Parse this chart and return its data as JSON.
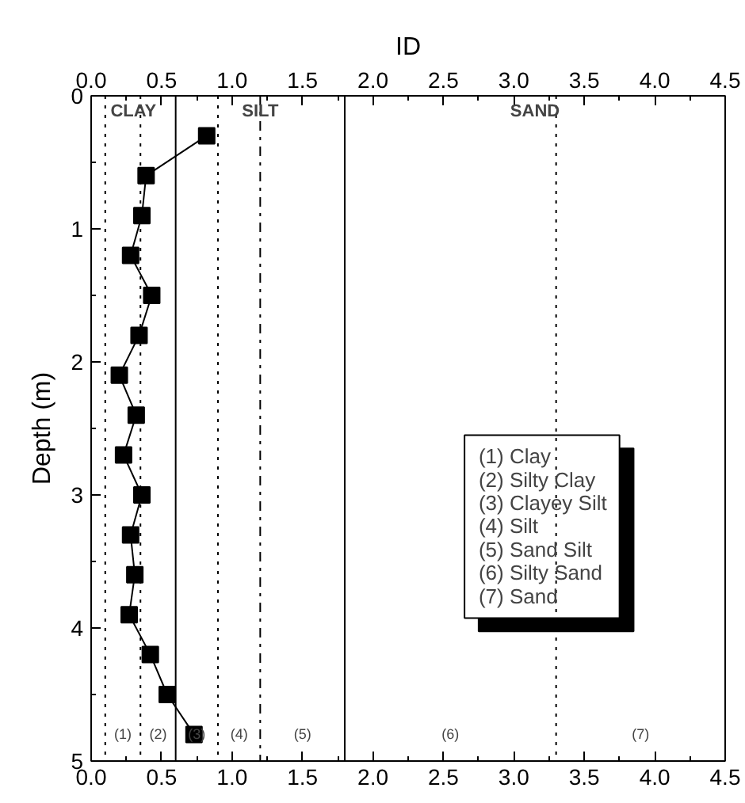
{
  "chart_data": {
    "type": "line",
    "xlabel": "ID",
    "ylabel": "Depth (m)",
    "series": [
      {
        "color": "#000000",
        "x": [
          0.82,
          0.39,
          0.36,
          0.28,
          0.43,
          0.34,
          0.2,
          0.32,
          0.23,
          0.36,
          0.28,
          0.31,
          0.27,
          0.42,
          0.54,
          0.73
        ],
        "values": [
          0.3,
          0.6,
          0.9,
          1.2,
          1.5,
          1.8,
          2.1,
          2.4,
          2.7,
          3.0,
          3.3,
          3.6,
          3.9,
          4.2,
          4.5,
          4.8
        ]
      }
    ],
    "marker": "square",
    "line_style": "solid",
    "xlim": [
      0,
      4.5
    ],
    "xticks": [
      {
        "value": 0,
        "label": "0.0"
      },
      0.5,
      {
        "value": 1,
        "label": "1.0"
      },
      1.5,
      {
        "value": 2,
        "label": "2.0"
      },
      2.5,
      {
        "value": 3,
        "label": "3.0"
      },
      3.5,
      {
        "value": 4,
        "label": "4.0"
      },
      4.5
    ],
    "x2lim": [
      0,
      4.5
    ],
    "x2ticks": [
      {
        "value": 0,
        "label": "0.0"
      },
      0.5,
      {
        "value": 1,
        "label": "1.0"
      },
      1.5,
      {
        "value": 2,
        "label": "2.0"
      },
      2.5,
      {
        "value": 3,
        "label": "3.0"
      },
      3.5,
      {
        "value": 4,
        "label": "4.0"
      },
      4.5
    ],
    "ylim": [
      5,
      0
    ],
    "yticks": [
      0,
      1,
      2,
      3,
      4,
      5
    ],
    "ref_lines": [
      {
        "axis": "x",
        "value": 0.1,
        "line_style": "dotted"
      },
      {
        "axis": "x",
        "value": 0.35,
        "line_style": "dotted"
      },
      {
        "axis": "x",
        "value": 0.6,
        "line_style": "solid"
      },
      {
        "axis": "x",
        "value": 0.9,
        "line_style": "dotted"
      },
      {
        "axis": "x",
        "value": 1.2,
        "line_style": "dashdot"
      },
      {
        "axis": "x",
        "value": 1.8,
        "line_style": "solid"
      },
      {
        "axis": "x",
        "value": 3.3,
        "line_style": "dotted"
      }
    ],
    "annotations": [
      "CLAY",
      "SILT",
      "SAND",
      "(1)",
      "(2)",
      "(3)",
      "(4)",
      "(5)",
      "(6)",
      "(7)",
      "(1) Clay",
      "(2) Silty Clay",
      "(3) Clayey Silt",
      "(4) Silt",
      "(5) Sand Silt",
      "(6) Silty Sand",
      "(7) Sand"
    ],
    "grid": false
  }
}
